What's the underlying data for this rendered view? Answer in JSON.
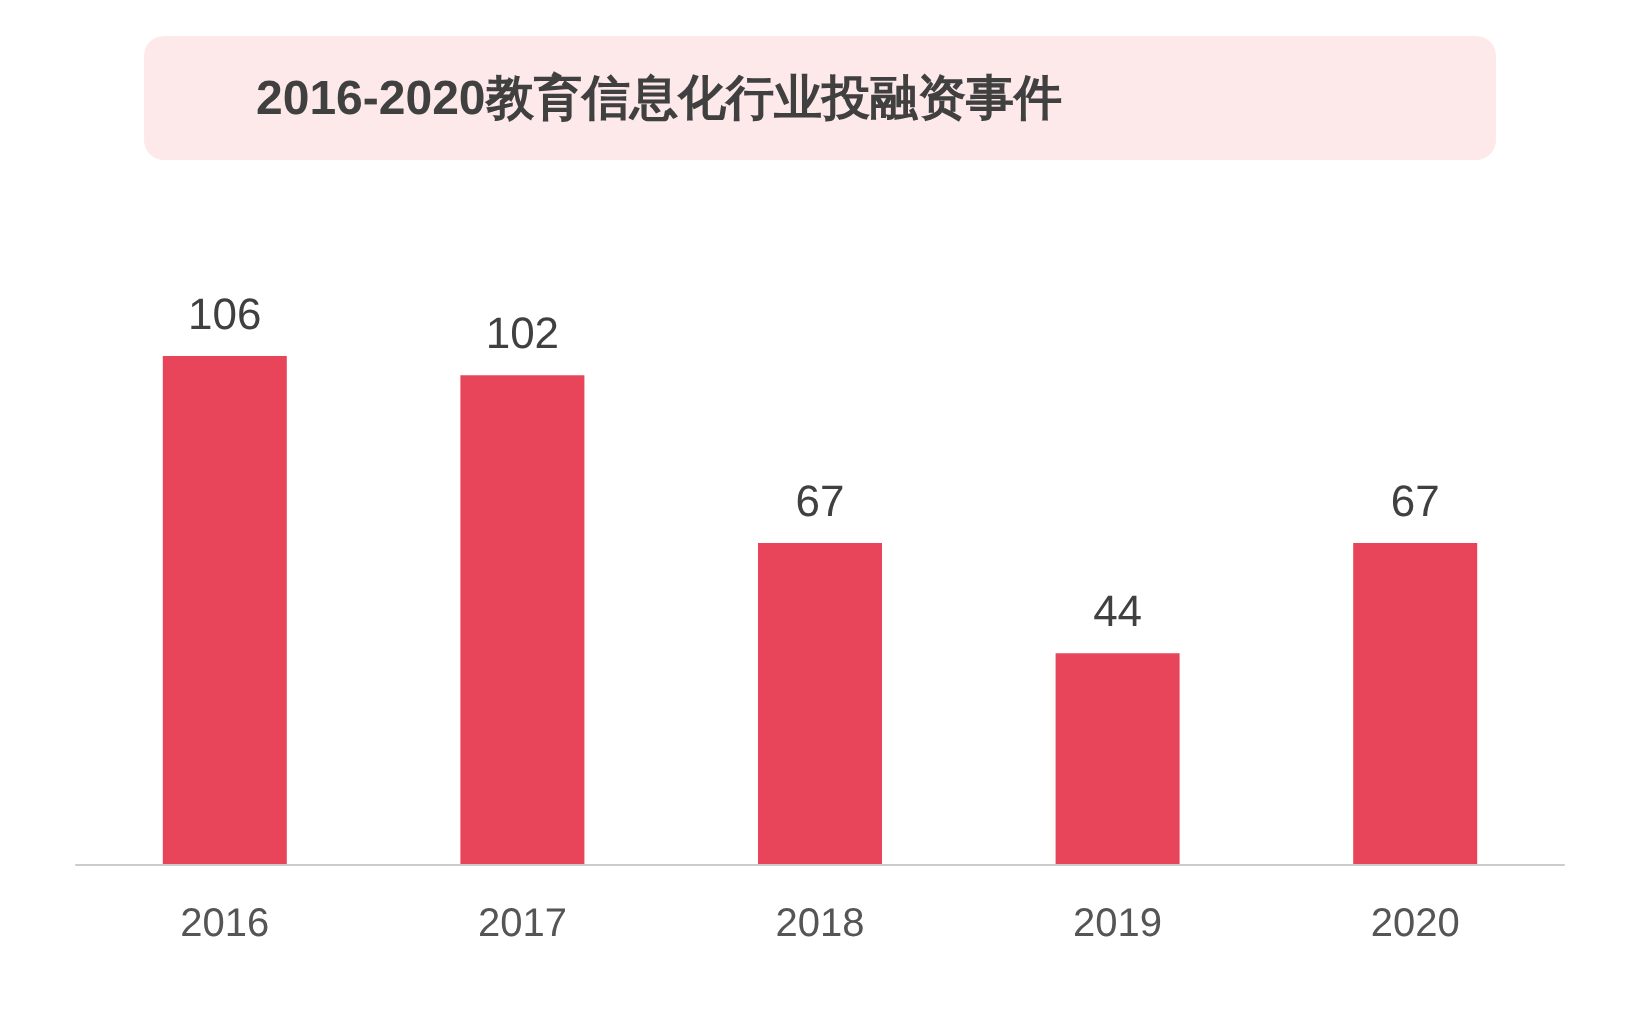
{
  "chart_data": {
    "type": "bar",
    "title": "2016-2020教育信息化行业投融资事件",
    "categories": [
      "2016",
      "2017",
      "2018",
      "2019",
      "2020"
    ],
    "values": [
      106,
      102,
      67,
      44,
      67
    ],
    "color": "#e8455a",
    "data_labels": true
  }
}
